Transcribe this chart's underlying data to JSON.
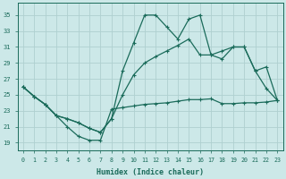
{
  "xlabel": "Humidex (Indice chaleur)",
  "bg_color": "#cce8e8",
  "grid_color": "#afd0d0",
  "line_color": "#1a6b5a",
  "xlim": [
    -0.5,
    23.5
  ],
  "ylim": [
    18,
    36.5
  ],
  "yticks": [
    19,
    21,
    23,
    25,
    27,
    29,
    31,
    33,
    35
  ],
  "xticks": [
    0,
    1,
    2,
    3,
    4,
    5,
    6,
    7,
    8,
    9,
    10,
    11,
    12,
    13,
    14,
    15,
    16,
    17,
    18,
    19,
    20,
    21,
    22,
    23
  ],
  "line1_x": [
    0,
    1,
    2,
    3,
    4,
    5,
    6,
    7,
    8,
    9,
    10,
    11,
    12,
    13,
    14,
    15,
    16,
    17,
    18,
    19,
    20,
    21,
    22,
    23
  ],
  "line1_y": [
    26.0,
    24.8,
    23.8,
    22.4,
    21.0,
    19.8,
    19.3,
    19.3,
    23.2,
    23.4,
    23.6,
    23.8,
    23.9,
    24.0,
    24.2,
    24.4,
    24.4,
    24.5,
    23.9,
    23.9,
    24.0,
    24.0,
    24.1,
    24.3
  ],
  "line2_x": [
    0,
    1,
    2,
    3,
    4,
    5,
    6,
    7,
    8,
    9,
    10,
    11,
    12,
    13,
    14,
    15,
    16,
    17,
    18,
    19,
    20,
    21,
    22,
    23
  ],
  "line2_y": [
    26.0,
    24.8,
    23.8,
    22.4,
    22.0,
    21.5,
    20.8,
    20.3,
    22.0,
    28.0,
    31.5,
    35.0,
    35.0,
    33.5,
    32.0,
    34.5,
    35.0,
    30.0,
    29.5,
    31.0,
    31.0,
    28.0,
    25.8,
    24.3
  ],
  "line3_x": [
    0,
    1,
    2,
    3,
    4,
    5,
    6,
    7,
    8,
    9,
    10,
    11,
    12,
    13,
    14,
    15,
    16,
    17,
    18,
    19,
    20,
    21,
    22,
    23
  ],
  "line3_y": [
    26.0,
    24.8,
    23.8,
    22.4,
    22.0,
    21.5,
    20.8,
    20.3,
    22.0,
    25.0,
    27.5,
    29.0,
    29.8,
    30.5,
    31.2,
    32.0,
    30.0,
    30.0,
    30.5,
    31.0,
    31.0,
    28.0,
    28.5,
    24.3
  ]
}
